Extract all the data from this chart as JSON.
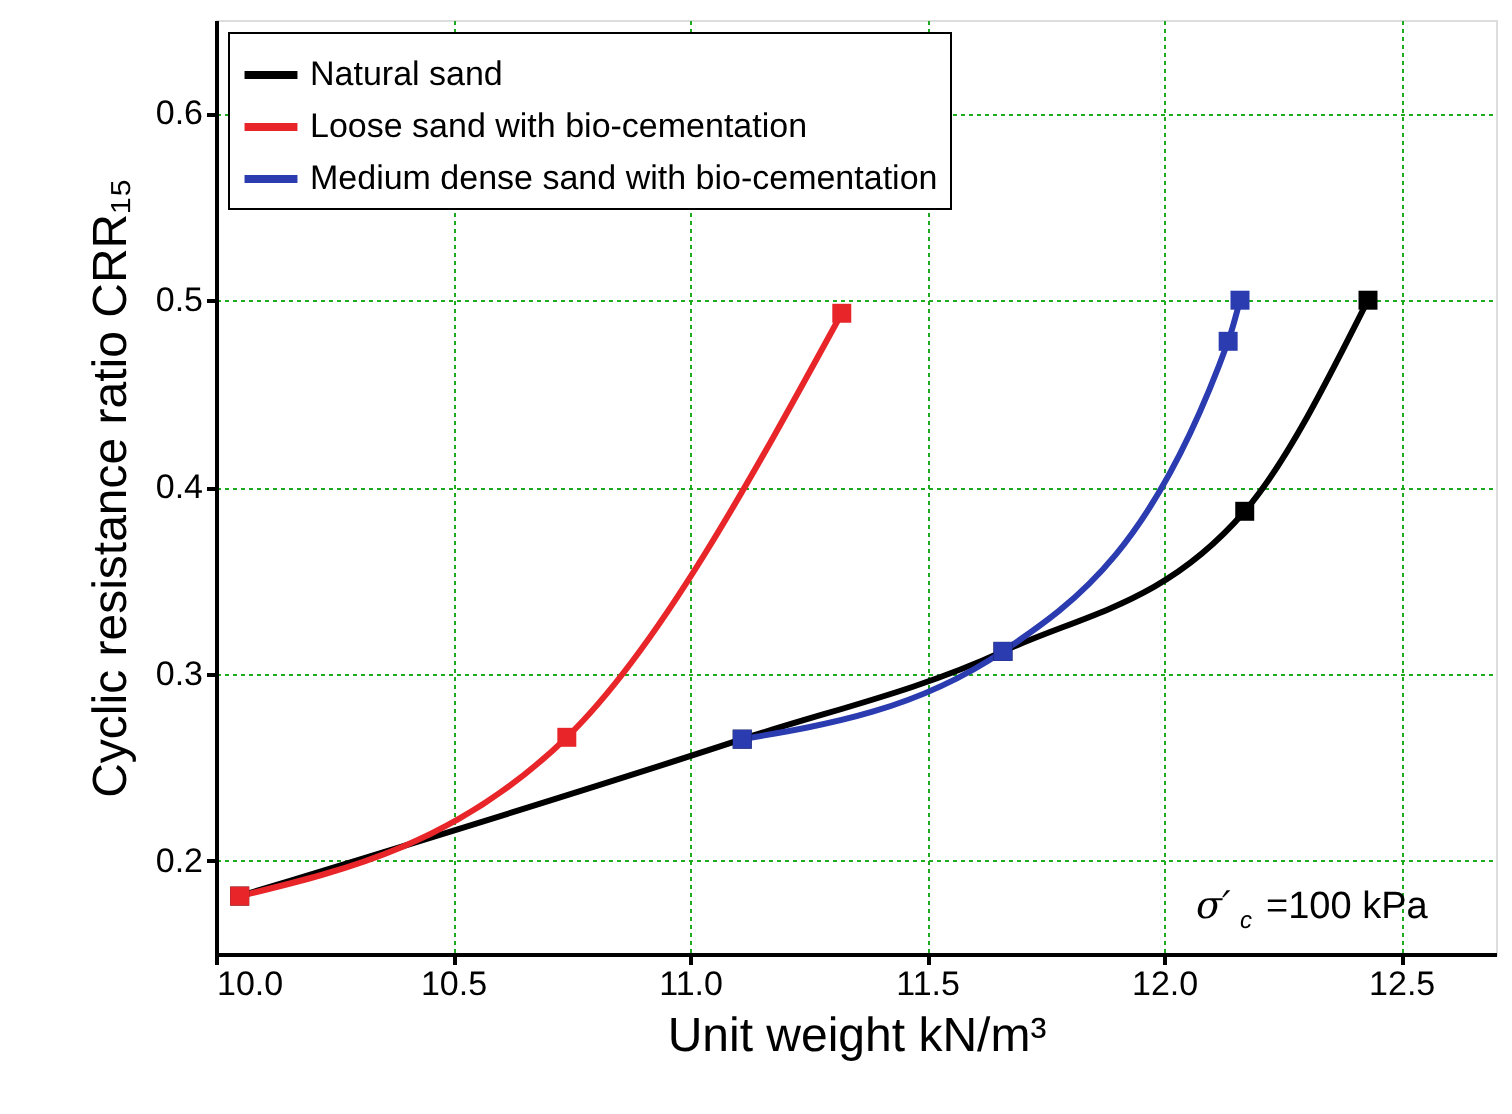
{
  "chart_data": {
    "type": "line",
    "xlabel": "Unit weight  kN/m³",
    "ylabel": "Cyclic resistance ratio  CRR₁₅",
    "xlim": [
      10.0,
      12.7
    ],
    "ylim": [
      0.15,
      0.65
    ],
    "xticks": [
      {
        "value": 10,
        "label": "10.0"
      },
      10.5,
      {
        "value": 11,
        "label": "11.0"
      },
      11.5,
      {
        "value": 12,
        "label": "12.0"
      },
      12.5
    ],
    "yticks": [
      0.2,
      0.3,
      0.4,
      0.5,
      0.6
    ],
    "grid": true,
    "legend": "top left",
    "marker": "square",
    "line_style": "solid",
    "annotations": [
      "σ′$_{c}$ =100 kPa"
    ],
    "series": [
      {
        "name": "Natural sand",
        "color": "#000000",
        "x": [
          10.05,
          11.11,
          11.66,
          12.17,
          12.43
        ],
        "values": [
          0.181,
          0.265,
          0.312,
          0.387,
          0.5
        ]
      },
      {
        "name": "Loose sand with bio-cementation",
        "color": "#e8262a",
        "x": [
          10.05,
          10.74,
          11.32
        ],
        "values": [
          0.181,
          0.266,
          0.493
        ]
      },
      {
        "name": "Medium dense sand with bio-cementation",
        "color": "#2b3bb0",
        "x": [
          11.11,
          11.66,
          12.135,
          12.16
        ],
        "values": [
          0.265,
          0.312,
          0.478,
          0.5
        ]
      }
    ]
  }
}
